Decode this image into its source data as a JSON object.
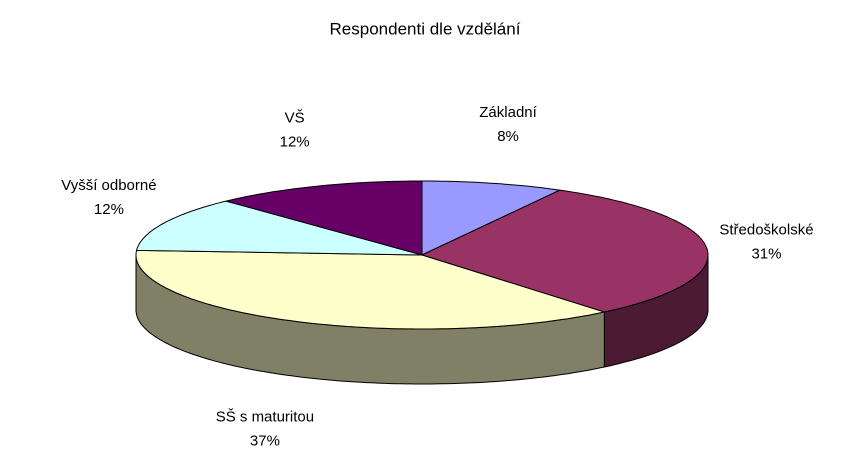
{
  "chart_data": {
    "type": "pie",
    "title": "Respondenti dle vzdělání",
    "categories": [
      "Základní",
      "Středoškolské",
      "SŠ s maturitou",
      "Vyšší odborné",
      "VŠ"
    ],
    "values": [
      8,
      31,
      37,
      12,
      12
    ],
    "value_labels": [
      "8%",
      "31%",
      "37%",
      "12%",
      "12%"
    ],
    "colors": [
      "#9999ff",
      "#993366",
      "#ffffcc",
      "#ccffff",
      "#660066"
    ]
  }
}
